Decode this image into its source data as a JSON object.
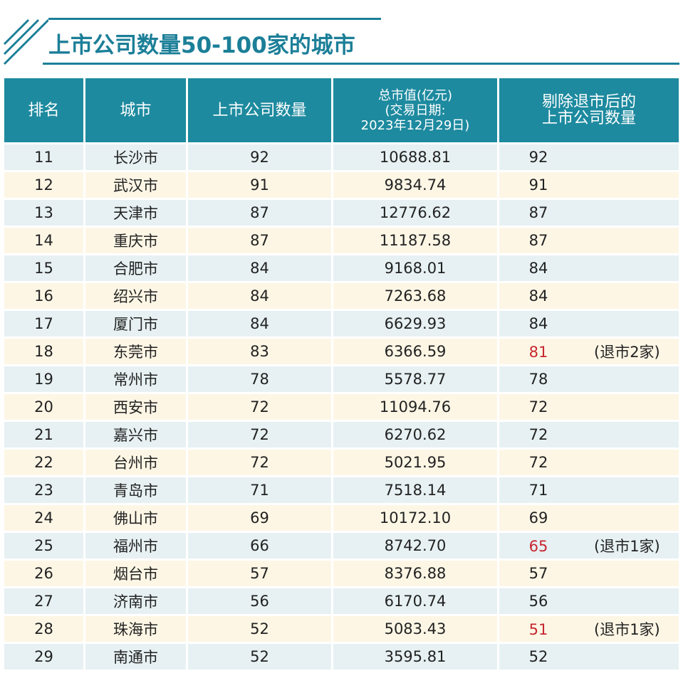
{
  "title": "上市公司数量50-100家的城市",
  "colors": {
    "accent": "#1d8a9f",
    "highlight": "#c7272e",
    "row_a": "#e7f1f3",
    "row_b": "#fdf6e5"
  },
  "headers": [
    "排名",
    "城市",
    "上市公司数量",
    "总市值(亿元)\n(交易日期:\n2023年12月29日)",
    "剔除退市后的\n上市公司数量"
  ],
  "rows": [
    {
      "rank": "11",
      "city": "长沙市",
      "count": "92",
      "cap": "10688.81",
      "adj": "92",
      "note": ""
    },
    {
      "rank": "12",
      "city": "武汉市",
      "count": "91",
      "cap": "9834.74",
      "adj": "91",
      "note": ""
    },
    {
      "rank": "13",
      "city": "天津市",
      "count": "87",
      "cap": "12776.62",
      "adj": "87",
      "note": ""
    },
    {
      "rank": "14",
      "city": "重庆市",
      "count": "87",
      "cap": "11187.58",
      "adj": "87",
      "note": ""
    },
    {
      "rank": "15",
      "city": "合肥市",
      "count": "84",
      "cap": "9168.01",
      "adj": "84",
      "note": ""
    },
    {
      "rank": "16",
      "city": "绍兴市",
      "count": "84",
      "cap": "7263.68",
      "adj": "84",
      "note": ""
    },
    {
      "rank": "17",
      "city": "厦门市",
      "count": "84",
      "cap": "6629.93",
      "adj": "84",
      "note": ""
    },
    {
      "rank": "18",
      "city": "东莞市",
      "count": "83",
      "cap": "6366.59",
      "adj": "81",
      "note": "(退市2家)"
    },
    {
      "rank": "19",
      "city": "常州市",
      "count": "78",
      "cap": "5578.77",
      "adj": "78",
      "note": ""
    },
    {
      "rank": "20",
      "city": "西安市",
      "count": "72",
      "cap": "11094.76",
      "adj": "72",
      "note": ""
    },
    {
      "rank": "21",
      "city": "嘉兴市",
      "count": "72",
      "cap": "6270.62",
      "adj": "72",
      "note": ""
    },
    {
      "rank": "22",
      "city": "台州市",
      "count": "72",
      "cap": "5021.95",
      "adj": "72",
      "note": ""
    },
    {
      "rank": "23",
      "city": "青岛市",
      "count": "71",
      "cap": "7518.14",
      "adj": "71",
      "note": ""
    },
    {
      "rank": "24",
      "city": "佛山市",
      "count": "69",
      "cap": "10172.10",
      "adj": "69",
      "note": ""
    },
    {
      "rank": "25",
      "city": "福州市",
      "count": "66",
      "cap": "8742.70",
      "adj": "65",
      "note": "(退市1家)"
    },
    {
      "rank": "26",
      "city": "烟台市",
      "count": "57",
      "cap": "8376.88",
      "adj": "57",
      "note": ""
    },
    {
      "rank": "27",
      "city": "济南市",
      "count": "56",
      "cap": "6170.74",
      "adj": "56",
      "note": ""
    },
    {
      "rank": "28",
      "city": "珠海市",
      "count": "52",
      "cap": "5083.43",
      "adj": "51",
      "note": "(退市1家)"
    },
    {
      "rank": "29",
      "city": "南通市",
      "count": "52",
      "cap": "3595.81",
      "adj": "52",
      "note": ""
    }
  ]
}
